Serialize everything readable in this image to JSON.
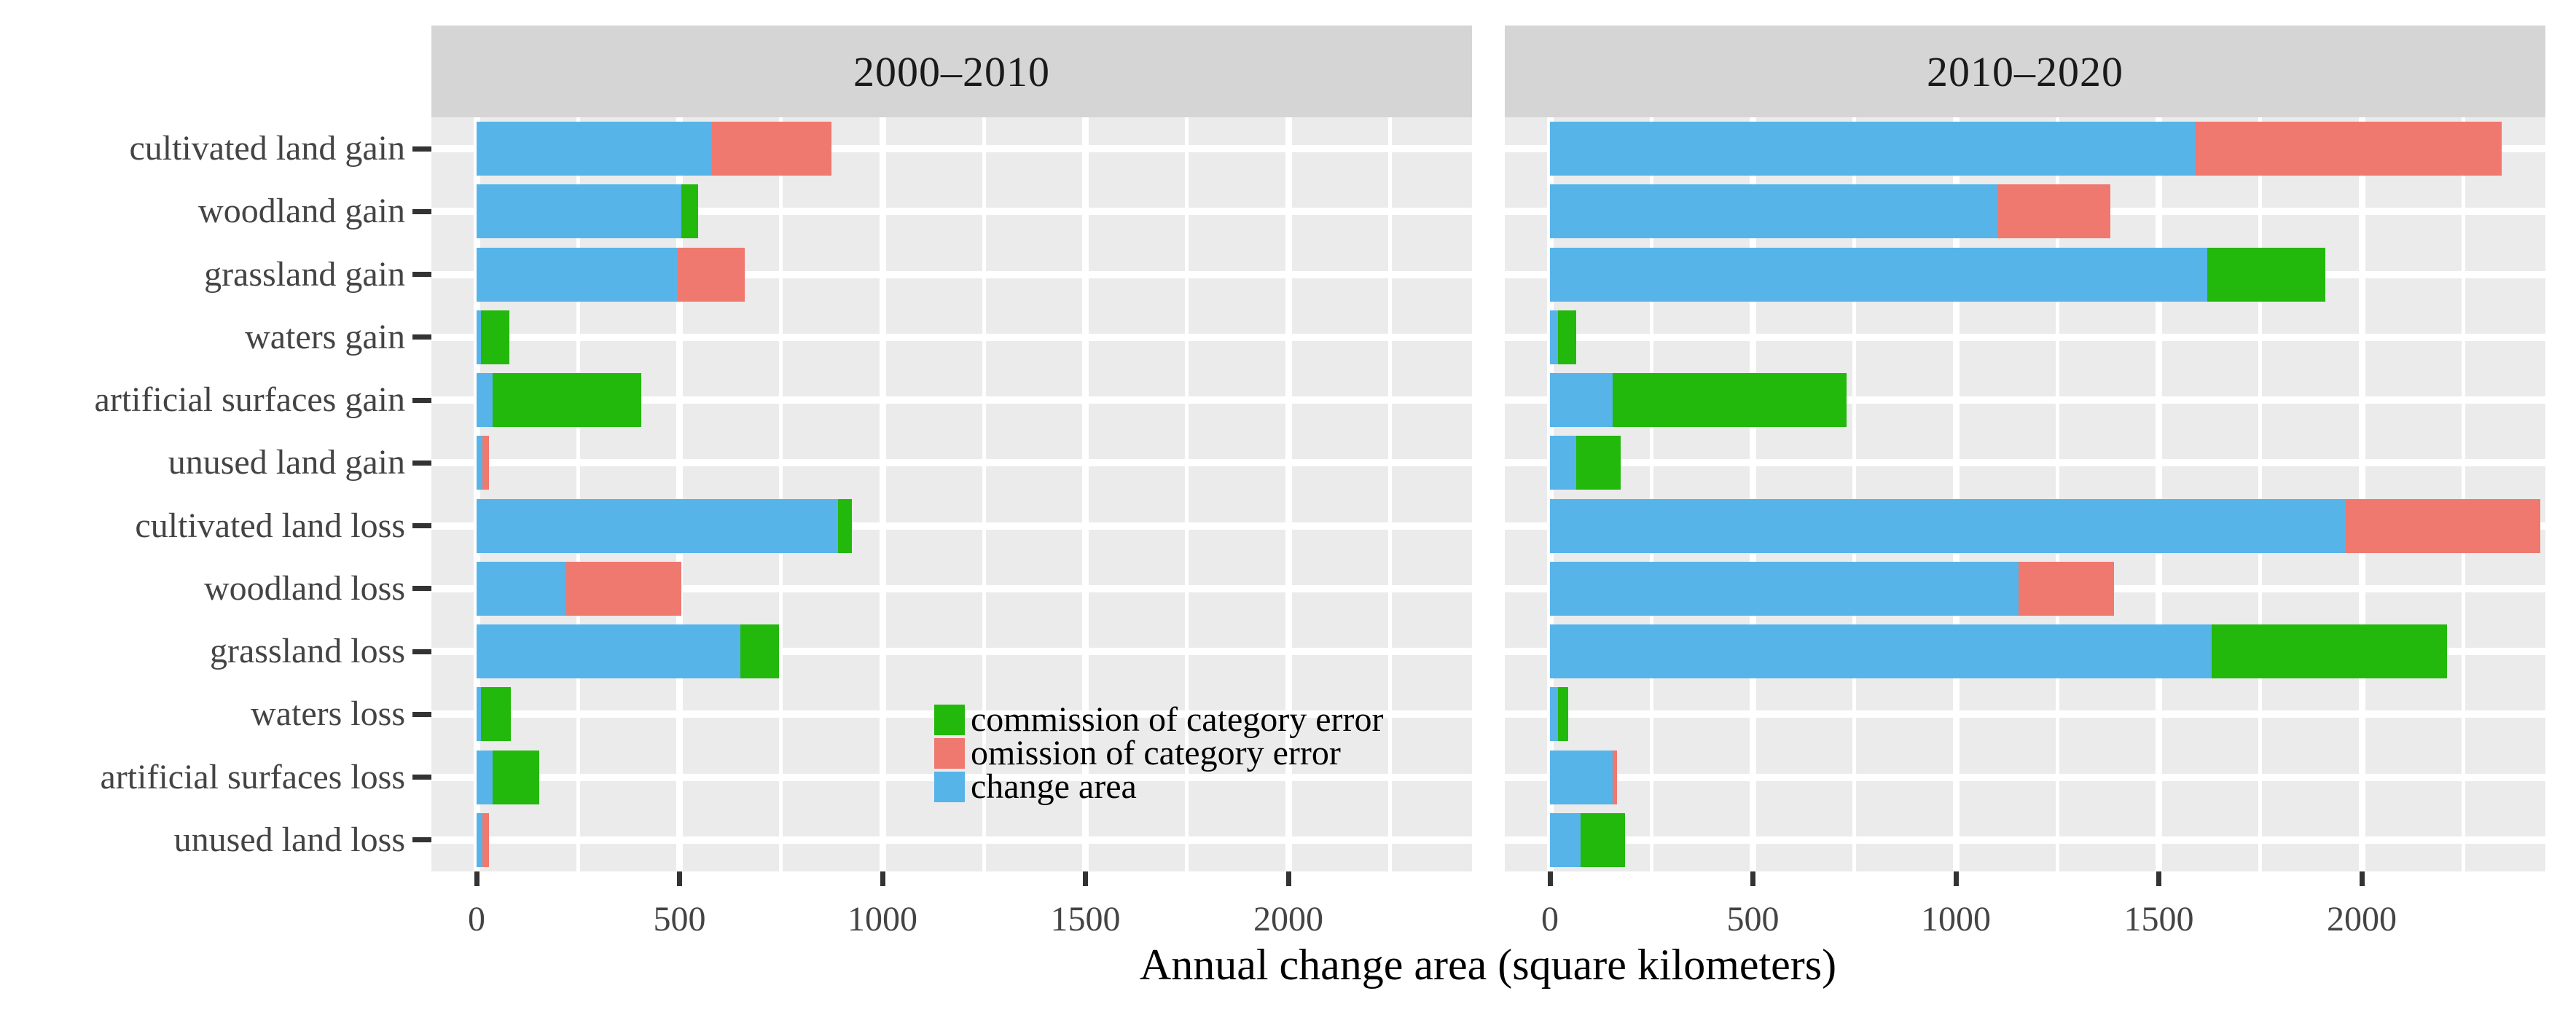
{
  "chart_data": {
    "type": "bar",
    "orientation": "horizontal",
    "stacked": true,
    "xlabel": "Annual change area (square kilometers)",
    "x_ticks": [
      0,
      500,
      1000,
      1500,
      2000
    ],
    "xlim": [
      0,
      2450
    ],
    "grid": "white major+minor on grey panel",
    "legend_position": "inside bottom of left panel",
    "categories": [
      "cultivated land gain",
      "woodland gain",
      "grassland gain",
      "waters gain",
      "artificial surfaces gain",
      "unused land gain",
      "cultivated land loss",
      "woodland loss",
      "grassland loss",
      "waters loss",
      "artificial surfaces loss",
      "unused land loss"
    ],
    "legend": [
      {
        "label": "commission of category error",
        "color": "#23B80C"
      },
      {
        "label": "omission of category error",
        "color": "#EF786F"
      },
      {
        "label": "change area",
        "color": "#56B4E9"
      }
    ],
    "facets": [
      {
        "title": "2000–2010",
        "series": [
          {
            "name": "change area",
            "color": "#56B4E9",
            "values": [
              580,
              505,
              495,
              10,
              40,
              15,
              890,
              220,
              650,
              10,
              40,
              15
            ]
          },
          {
            "name": "omission of category error",
            "color": "#EF786F",
            "values": [
              295,
              0,
              165,
              0,
              0,
              15,
              0,
              285,
              0,
              0,
              0,
              15
            ]
          },
          {
            "name": "commission of category error",
            "color": "#23B80C",
            "values": [
              0,
              40,
              0,
              70,
              365,
              0,
              35,
              0,
              95,
              75,
              115,
              0
            ]
          }
        ]
      },
      {
        "title": "2010–2020",
        "series": [
          {
            "name": "change area",
            "color": "#56B4E9",
            "values": [
              1590,
              1105,
              1620,
              20,
              155,
              65,
              1960,
              1155,
              1630,
              20,
              155,
              75
            ]
          },
          {
            "name": "omission of category error",
            "color": "#EF786F",
            "values": [
              755,
              275,
              0,
              0,
              0,
              0,
              480,
              235,
              0,
              0,
              10,
              0
            ]
          },
          {
            "name": "commission of category error",
            "color": "#23B80C",
            "values": [
              0,
              0,
              290,
              45,
              575,
              110,
              0,
              0,
              580,
              25,
              0,
              110
            ]
          }
        ]
      }
    ],
    "colors": {
      "panel_background": "#EBEBEB",
      "strip_background": "#D5D5D5",
      "gridline": "#FFFFFF",
      "axis_text": "#444444",
      "tick_mark": "#333333"
    }
  }
}
